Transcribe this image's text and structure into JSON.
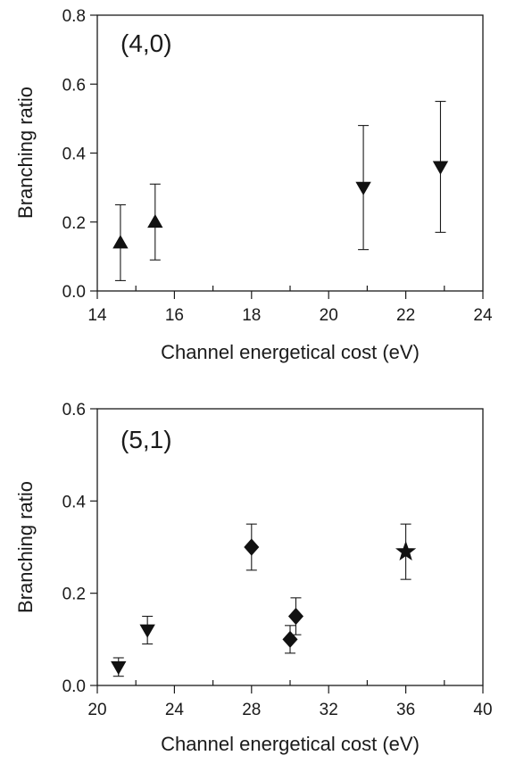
{
  "chart_data": [
    {
      "type": "scatter",
      "panel_label": "(4,0)",
      "xlabel": "Channel energetical cost (eV)",
      "ylabel": "Branching ratio",
      "xlim": [
        14,
        24
      ],
      "ylim": [
        0,
        0.8
      ],
      "x_ticks": [
        "14",
        "16",
        "18",
        "20",
        "22",
        "24"
      ],
      "y_ticks": [
        "0.0",
        "0.2",
        "0.4",
        "0.6",
        "0.8"
      ],
      "x_tick_step": 2,
      "x_minor_step": 1,
      "y_tick_step": 0.2,
      "grid": false,
      "series": [
        {
          "marker": "triangle-up",
          "points": [
            {
              "x": 14.6,
              "y": 0.14,
              "err_low": 0.03,
              "err_high": 0.25
            },
            {
              "x": 15.5,
              "y": 0.2,
              "err_low": 0.09,
              "err_high": 0.31
            }
          ]
        },
        {
          "marker": "triangle-down",
          "points": [
            {
              "x": 20.9,
              "y": 0.3,
              "err_low": 0.12,
              "err_high": 0.48
            },
            {
              "x": 22.9,
              "y": 0.36,
              "err_low": 0.17,
              "err_high": 0.55
            }
          ]
        }
      ]
    },
    {
      "type": "scatter",
      "panel_label": "(5,1)",
      "xlabel": "Channel energetical cost (eV)",
      "ylabel": "Branching ratio",
      "xlim": [
        20,
        40
      ],
      "ylim": [
        0,
        0.6
      ],
      "x_ticks": [
        "20",
        "24",
        "28",
        "32",
        "36",
        "40"
      ],
      "y_ticks": [
        "0.0",
        "0.2",
        "0.4",
        "0.6"
      ],
      "x_tick_step": 4,
      "x_minor_step": 2,
      "y_tick_step": 0.2,
      "grid": false,
      "series": [
        {
          "marker": "triangle-down",
          "points": [
            {
              "x": 21.1,
              "y": 0.04,
              "err_low": 0.02,
              "err_high": 0.06
            },
            {
              "x": 22.6,
              "y": 0.12,
              "err_low": 0.09,
              "err_high": 0.15
            }
          ]
        },
        {
          "marker": "diamond",
          "points": [
            {
              "x": 28.0,
              "y": 0.3,
              "err_low": 0.25,
              "err_high": 0.35
            },
            {
              "x": 30.0,
              "y": 0.1,
              "err_low": 0.07,
              "err_high": 0.13
            },
            {
              "x": 30.3,
              "y": 0.15,
              "err_low": 0.11,
              "err_high": 0.19
            }
          ]
        },
        {
          "marker": "star",
          "points": [
            {
              "x": 36.0,
              "y": 0.29,
              "err_low": 0.23,
              "err_high": 0.35
            }
          ]
        }
      ]
    }
  ]
}
